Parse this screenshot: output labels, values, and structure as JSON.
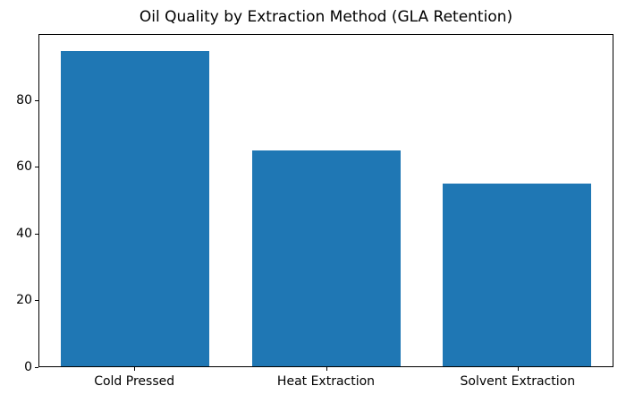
{
  "chart_data": {
    "type": "bar",
    "title": "Oil Quality by Extraction Method (GLA Retention)",
    "categories": [
      "Cold Pressed",
      "Heat Extraction",
      "Solvent Extraction"
    ],
    "values": [
      95,
      65,
      55
    ],
    "xlabel": "",
    "ylabel": "",
    "ylim": [
      0,
      99.75
    ],
    "yticks": [
      0,
      20,
      40,
      60,
      80
    ],
    "legend": false,
    "grid": false,
    "colors": {
      "bar": "#1f77b4",
      "axis": "#000000",
      "text": "#000000",
      "background": "#ffffff"
    }
  }
}
